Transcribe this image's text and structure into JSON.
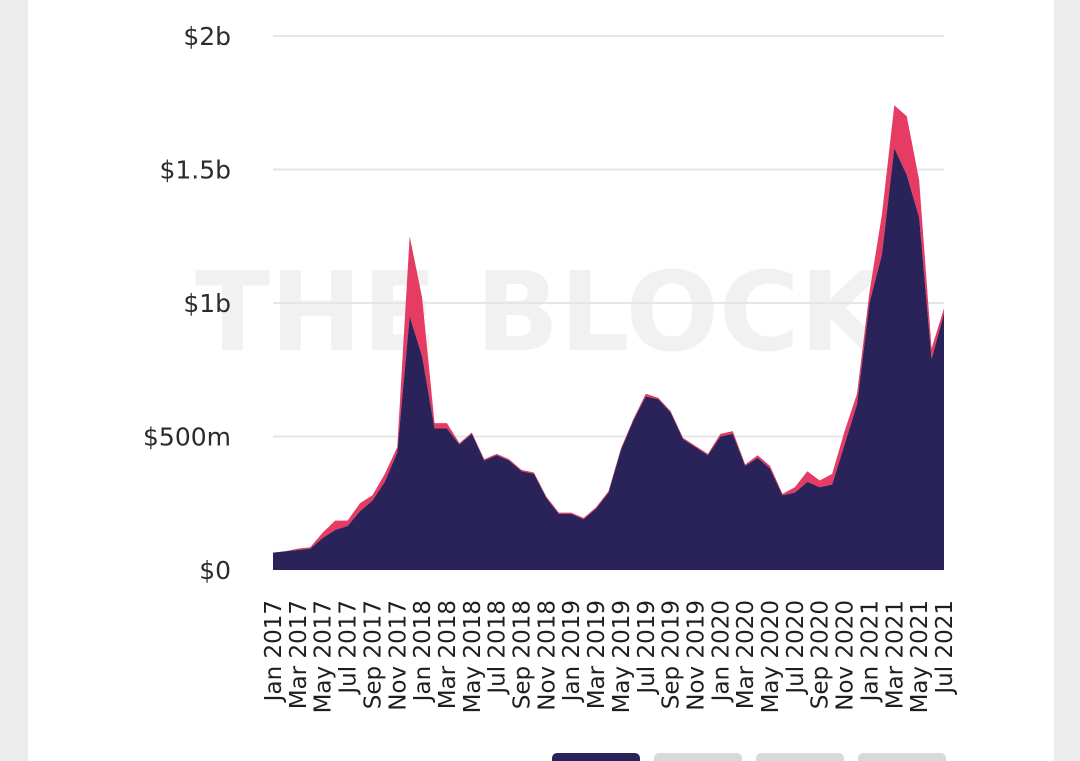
{
  "watermark": "THE BLOCK",
  "legend_buttons": [
    "",
    "",
    "",
    ""
  ],
  "colors": {
    "bottom_series": "#2a2359",
    "top_series": "#e63b63",
    "grid": "#e6e6e6",
    "active_button": "#2a2359",
    "inactive_button": "#d9d9d9"
  },
  "chart_data": {
    "type": "area",
    "stacked": true,
    "title": "",
    "xlabel": "",
    "ylabel": "",
    "ylim": [
      0,
      2000000000
    ],
    "y_ticks": [
      {
        "value": 0,
        "label": "$0"
      },
      {
        "value": 500000000,
        "label": "$500m"
      },
      {
        "value": 1000000000,
        "label": "$1b"
      },
      {
        "value": 1500000000,
        "label": "$1.5b"
      },
      {
        "value": 2000000000,
        "label": "$2b"
      }
    ],
    "x_tick_labels": [
      "Jan 2017",
      "Mar 2017",
      "May 2017",
      "Jul 2017",
      "Sep 2017",
      "Nov 2017",
      "Jan 2018",
      "Mar 2018",
      "May 2018",
      "Jul 2018",
      "Sep 2018",
      "Nov 2018",
      "Jan 2019",
      "Mar 2019",
      "May 2019",
      "Jul 2019",
      "Sep 2019",
      "Nov 2019",
      "Jan 2020",
      "Mar 2020",
      "May 2020",
      "Jul 2020",
      "Sep 2020",
      "Nov 2020",
      "Jan 2021",
      "Mar 2021",
      "May 2021",
      "Jul 2021"
    ],
    "grid": true,
    "x": [
      "Jan 2017",
      "Feb 2017",
      "Mar 2017",
      "Apr 2017",
      "May 2017",
      "Jun 2017",
      "Jul 2017",
      "Aug 2017",
      "Sep 2017",
      "Oct 2017",
      "Nov 2017",
      "Dec 2017",
      "Jan 2018",
      "Feb 2018",
      "Mar 2018",
      "Apr 2018",
      "May 2018",
      "Jun 2018",
      "Jul 2018",
      "Aug 2018",
      "Sep 2018",
      "Oct 2018",
      "Nov 2018",
      "Dec 2018",
      "Jan 2019",
      "Feb 2019",
      "Mar 2019",
      "Apr 2019",
      "May 2019",
      "Jun 2019",
      "Jul 2019",
      "Aug 2019",
      "Sep 2019",
      "Oct 2019",
      "Nov 2019",
      "Dec 2019",
      "Jan 2020",
      "Feb 2020",
      "Mar 2020",
      "Apr 2020",
      "May 2020",
      "Jun 2020",
      "Jul 2020",
      "Aug 2020",
      "Sep 2020",
      "Oct 2020",
      "Nov 2020",
      "Dec 2020",
      "Jan 2021",
      "Feb 2021",
      "Mar 2021",
      "Apr 2021",
      "May 2021",
      "Jun 2021",
      "Jul 2021"
    ],
    "series": [
      {
        "values": [
          65000000,
          70000000,
          75000000,
          80000000,
          120000000,
          150000000,
          165000000,
          220000000,
          260000000,
          330000000,
          440000000,
          950000000,
          800000000,
          530000000,
          530000000,
          470000000,
          510000000,
          410000000,
          430000000,
          410000000,
          370000000,
          360000000,
          270000000,
          210000000,
          210000000,
          190000000,
          230000000,
          290000000,
          450000000,
          560000000,
          650000000,
          640000000,
          590000000,
          490000000,
          460000000,
          430000000,
          500000000,
          510000000,
          390000000,
          420000000,
          380000000,
          280000000,
          290000000,
          330000000,
          310000000,
          320000000,
          470000000,
          620000000,
          1000000000,
          1180000000,
          1580000000,
          1480000000,
          1320000000,
          790000000,
          960000000
        ]
      },
      {
        "values": [
          0,
          0,
          5000000,
          5000000,
          20000000,
          35000000,
          20000000,
          30000000,
          20000000,
          30000000,
          20000000,
          300000000,
          220000000,
          20000000,
          20000000,
          5000000,
          5000000,
          5000000,
          5000000,
          5000000,
          5000000,
          5000000,
          5000000,
          5000000,
          5000000,
          5000000,
          5000000,
          5000000,
          5000000,
          5000000,
          10000000,
          5000000,
          5000000,
          5000000,
          5000000,
          5000000,
          10000000,
          10000000,
          5000000,
          10000000,
          10000000,
          5000000,
          20000000,
          40000000,
          25000000,
          40000000,
          50000000,
          40000000,
          40000000,
          150000000,
          160000000,
          220000000,
          140000000,
          40000000,
          20000000
        ]
      }
    ]
  }
}
